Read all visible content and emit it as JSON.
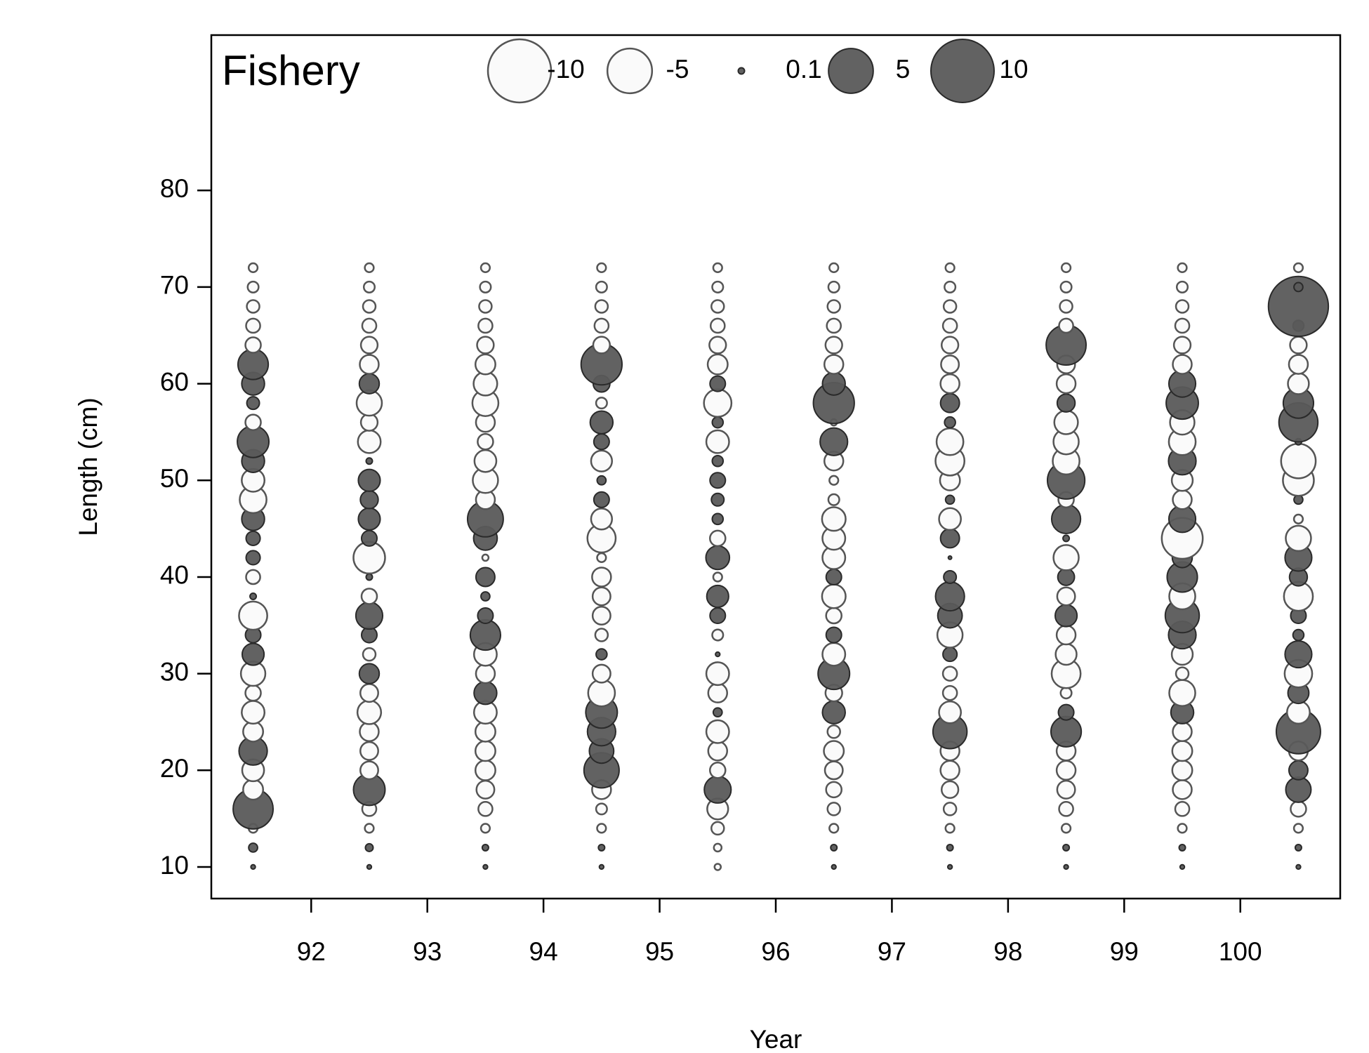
{
  "chart_data": {
    "type": "bubble",
    "title": "Fishery",
    "x_label": "Year",
    "y_label": "Length (cm)",
    "xlim": [
      91.14,
      100.86
    ],
    "xticks": [
      92,
      93,
      94,
      95,
      96,
      97,
      98,
      99,
      100
    ],
    "ylim": [
      6.73,
      96.07
    ],
    "yticks": [
      10,
      20,
      30,
      40,
      50,
      60,
      70,
      80
    ],
    "positive_color": "#5a5a5a",
    "negative_color": "#fafafa",
    "size_legend": [
      -10,
      -5,
      0.1,
      5,
      10
    ],
    "lengths": [
      10,
      12,
      14,
      16,
      18,
      20,
      22,
      24,
      26,
      28,
      30,
      32,
      34,
      36,
      38,
      40,
      42,
      44,
      46,
      48,
      50,
      52,
      54,
      56,
      58,
      60,
      62,
      64,
      66,
      68,
      70,
      72
    ],
    "columns": [
      {
        "x": 91.5,
        "values": [
          0.05,
          0.2,
          -0.2,
          4,
          -1.0,
          -1.2,
          2.0,
          -1.0,
          -1.3,
          -0.6,
          -1.5,
          1.2,
          0.6,
          -2,
          0.1,
          -0.5,
          0.5,
          0.5,
          1.3,
          -1.8,
          -1.3,
          1.3,
          2.5,
          -0.6,
          0.4,
          1.3,
          2.3,
          -0.6,
          -0.5,
          -0.4,
          -0.3,
          -0.2
        ]
      },
      {
        "x": 92.5,
        "values": [
          0.05,
          0.15,
          -0.2,
          -0.5,
          2.5,
          -0.8,
          -0.8,
          -0.9,
          -1.4,
          -0.8,
          1.0,
          -0.4,
          0.6,
          1.8,
          -0.6,
          0.1,
          -2.5,
          0.6,
          1.2,
          0.8,
          1.2,
          0.1,
          -1.3,
          -0.7,
          -1.6,
          1.0,
          -0.9,
          -0.7,
          -0.5,
          -0.4,
          -0.3,
          -0.2
        ]
      },
      {
        "x": 93.5,
        "values": [
          0.05,
          0.1,
          -0.2,
          -0.5,
          -0.8,
          -1.0,
          -1.0,
          -1.0,
          -1.3,
          1.3,
          -0.9,
          -1.3,
          2.3,
          0.6,
          0.2,
          0.9,
          -0.1,
          1.4,
          3.2,
          -0.9,
          -1.6,
          -1.2,
          -0.6,
          -0.9,
          -1.7,
          -1.4,
          -1.0,
          -0.7,
          -0.5,
          -0.4,
          -0.3,
          -0.2
        ]
      },
      {
        "x": 94.5,
        "values": [
          0.05,
          0.1,
          -0.2,
          -0.3,
          -0.9,
          3.1,
          1.5,
          2.0,
          2.5,
          -1.8,
          -0.8,
          0.3,
          -0.4,
          -0.8,
          -0.8,
          -0.9,
          -0.2,
          -2.0,
          -1.1,
          0.6,
          0.2,
          -1.1,
          0.6,
          1.3,
          -0.3,
          0.7,
          4.2,
          -0.7,
          -0.5,
          -0.4,
          -0.3,
          -0.2
        ]
      },
      {
        "x": 95.5,
        "values": [
          -0.1,
          -0.15,
          -0.4,
          -1.1,
          1.8,
          -0.6,
          -0.9,
          -1.3,
          0.2,
          -0.9,
          -1.3,
          0.05,
          -0.3,
          0.6,
          1.2,
          -0.2,
          1.4,
          -0.6,
          0.3,
          0.4,
          0.6,
          0.3,
          -1.3,
          0.3,
          -1.9,
          0.6,
          -1.0,
          -0.7,
          -0.5,
          -0.4,
          -0.3,
          -0.2
        ]
      },
      {
        "x": 96.5,
        "values": [
          0.05,
          0.1,
          -0.2,
          -0.4,
          -0.6,
          -0.8,
          -1.0,
          -0.4,
          1.3,
          -0.7,
          2.5,
          -1.3,
          0.6,
          -0.6,
          -1.4,
          0.6,
          -1.3,
          -1.3,
          -1.4,
          -0.3,
          -0.2,
          -0.9,
          1.9,
          -0.1,
          4.2,
          1.3,
          -0.9,
          -0.7,
          -0.5,
          -0.4,
          -0.3,
          -0.2
        ]
      },
      {
        "x": 97.5,
        "values": [
          0.05,
          0.1,
          -0.2,
          -0.4,
          -0.7,
          -0.9,
          -0.9,
          2.9,
          -1.2,
          -0.5,
          -0.5,
          0.5,
          -1.6,
          1.5,
          2.1,
          0.4,
          0.03,
          0.9,
          -1.2,
          0.2,
          -1.0,
          -2.1,
          -1.8,
          0.3,
          0.9,
          -0.9,
          -0.8,
          -0.7,
          -0.5,
          -0.4,
          -0.3,
          -0.2
        ]
      },
      {
        "x": 98.5,
        "values": [
          0.05,
          0.1,
          -0.2,
          -0.5,
          -0.8,
          -0.9,
          -0.9,
          2.3,
          0.6,
          -0.3,
          -2.1,
          -1.1,
          -0.9,
          1.2,
          -0.8,
          0.7,
          -1.6,
          0.1,
          2.1,
          -0.6,
          3.5,
          -1.8,
          -1.6,
          -1.4,
          0.8,
          -0.9,
          -0.8,
          4.0,
          -0.5,
          -0.4,
          -0.3,
          -0.2
        ]
      },
      {
        "x": 99.5,
        "values": [
          0.05,
          0.1,
          -0.2,
          -0.5,
          -0.9,
          -1.0,
          -1.0,
          -0.9,
          1.3,
          -1.7,
          -0.4,
          -1.1,
          1.9,
          2.9,
          -1.7,
          2.3,
          1.0,
          -4.2,
          1.8,
          -0.9,
          -1.1,
          1.9,
          -1.8,
          -1.5,
          2.6,
          1.8,
          -0.9,
          -0.7,
          -0.5,
          -0.4,
          -0.3,
          -0.2
        ]
      },
      {
        "x": 100.5,
        "values": [
          0.05,
          0.1,
          -0.2,
          -0.6,
          1.6,
          0.9,
          -0.9,
          4.9,
          -1.3,
          1.1,
          -1.9,
          1.8,
          0.3,
          0.6,
          -2.1,
          0.8,
          1.8,
          -1.6,
          -0.2,
          0.2,
          -2.4,
          -3.0,
          0.1,
          3.8,
          2.3,
          -1.1,
          -0.9,
          -0.7,
          0.3,
          9.0,
          0.2,
          -0.2
        ]
      }
    ]
  }
}
